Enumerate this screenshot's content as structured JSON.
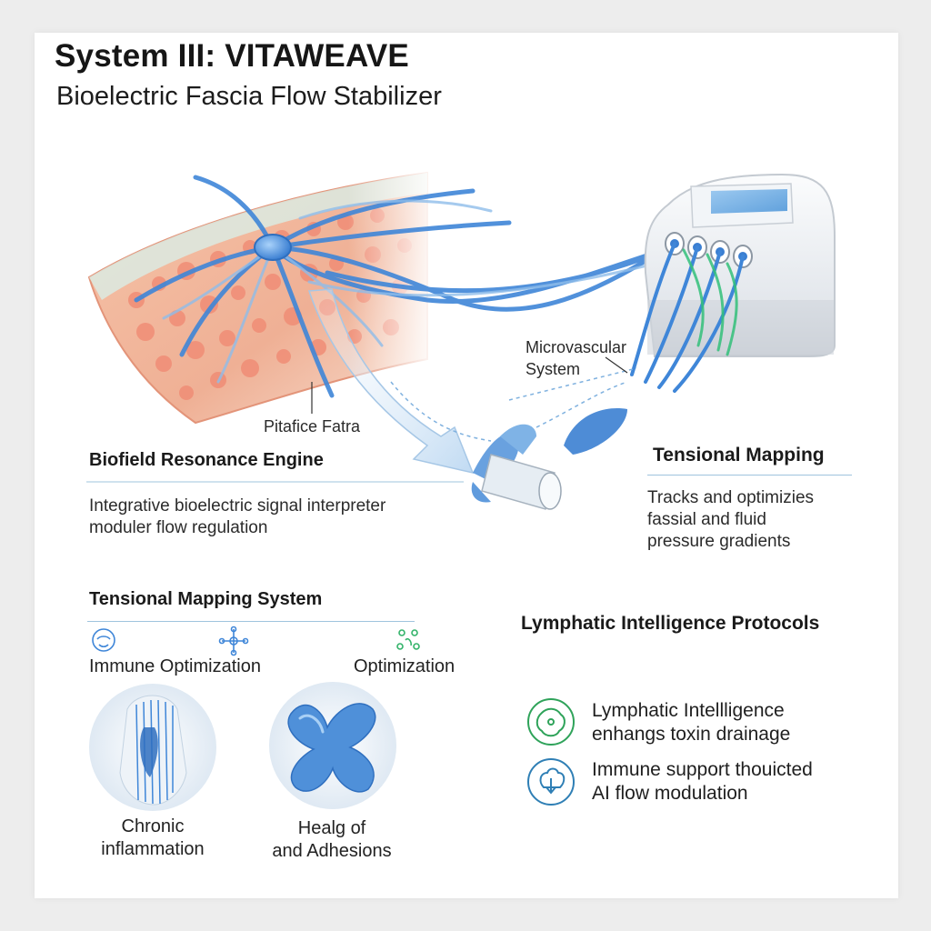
{
  "title": "System III: VITAWEAVE",
  "subtitle": "Bioelectric Fascia Flow Stabilizer",
  "labels": {
    "microvascular": [
      "Microvascular",
      "System"
    ],
    "pitafice": "Pitafice Fatra"
  },
  "biofield": {
    "heading": "Biofield Resonance Engine",
    "lines": [
      "Integrative bioelectric signal interpreter",
      "moduler flow regulation"
    ]
  },
  "tensional": {
    "heading": "Tensional Mapping",
    "lines": [
      "Tracks and optimizies",
      "fassial and fluid",
      "pressure gradients"
    ]
  },
  "mapping_system": {
    "heading": "Tensional Mapping System",
    "left_label": "Immune Optimization",
    "right_label": "Optimization",
    "icons": [
      "face-outline-icon",
      "cross-node-icon",
      "node-cluster-icon"
    ]
  },
  "illustrations": [
    {
      "name": "body-vessels",
      "caption": [
        "Chronic",
        "inflammation"
      ]
    },
    {
      "name": "adhesion-shape",
      "caption": [
        "Healg of",
        "and Adhesions"
      ]
    }
  ],
  "protocols": {
    "heading": "Lymphatic Intelligence Protocols",
    "items": [
      {
        "icon": "virus-outline-icon",
        "lines": [
          "Lymphatic Intellligence",
          "enhangs toxin drainage"
        ],
        "color": "#2fa35a"
      },
      {
        "icon": "shield-cell-icon",
        "lines": [
          "Immune support thouicted",
          "AI flow modulation"
        ],
        "color": "#2f7fb5"
      }
    ]
  },
  "colors": {
    "accent_blue": "#3f86d8",
    "accent_green": "#33c07a",
    "tissue": "#f0a08a",
    "rule": "#9fc4de"
  }
}
